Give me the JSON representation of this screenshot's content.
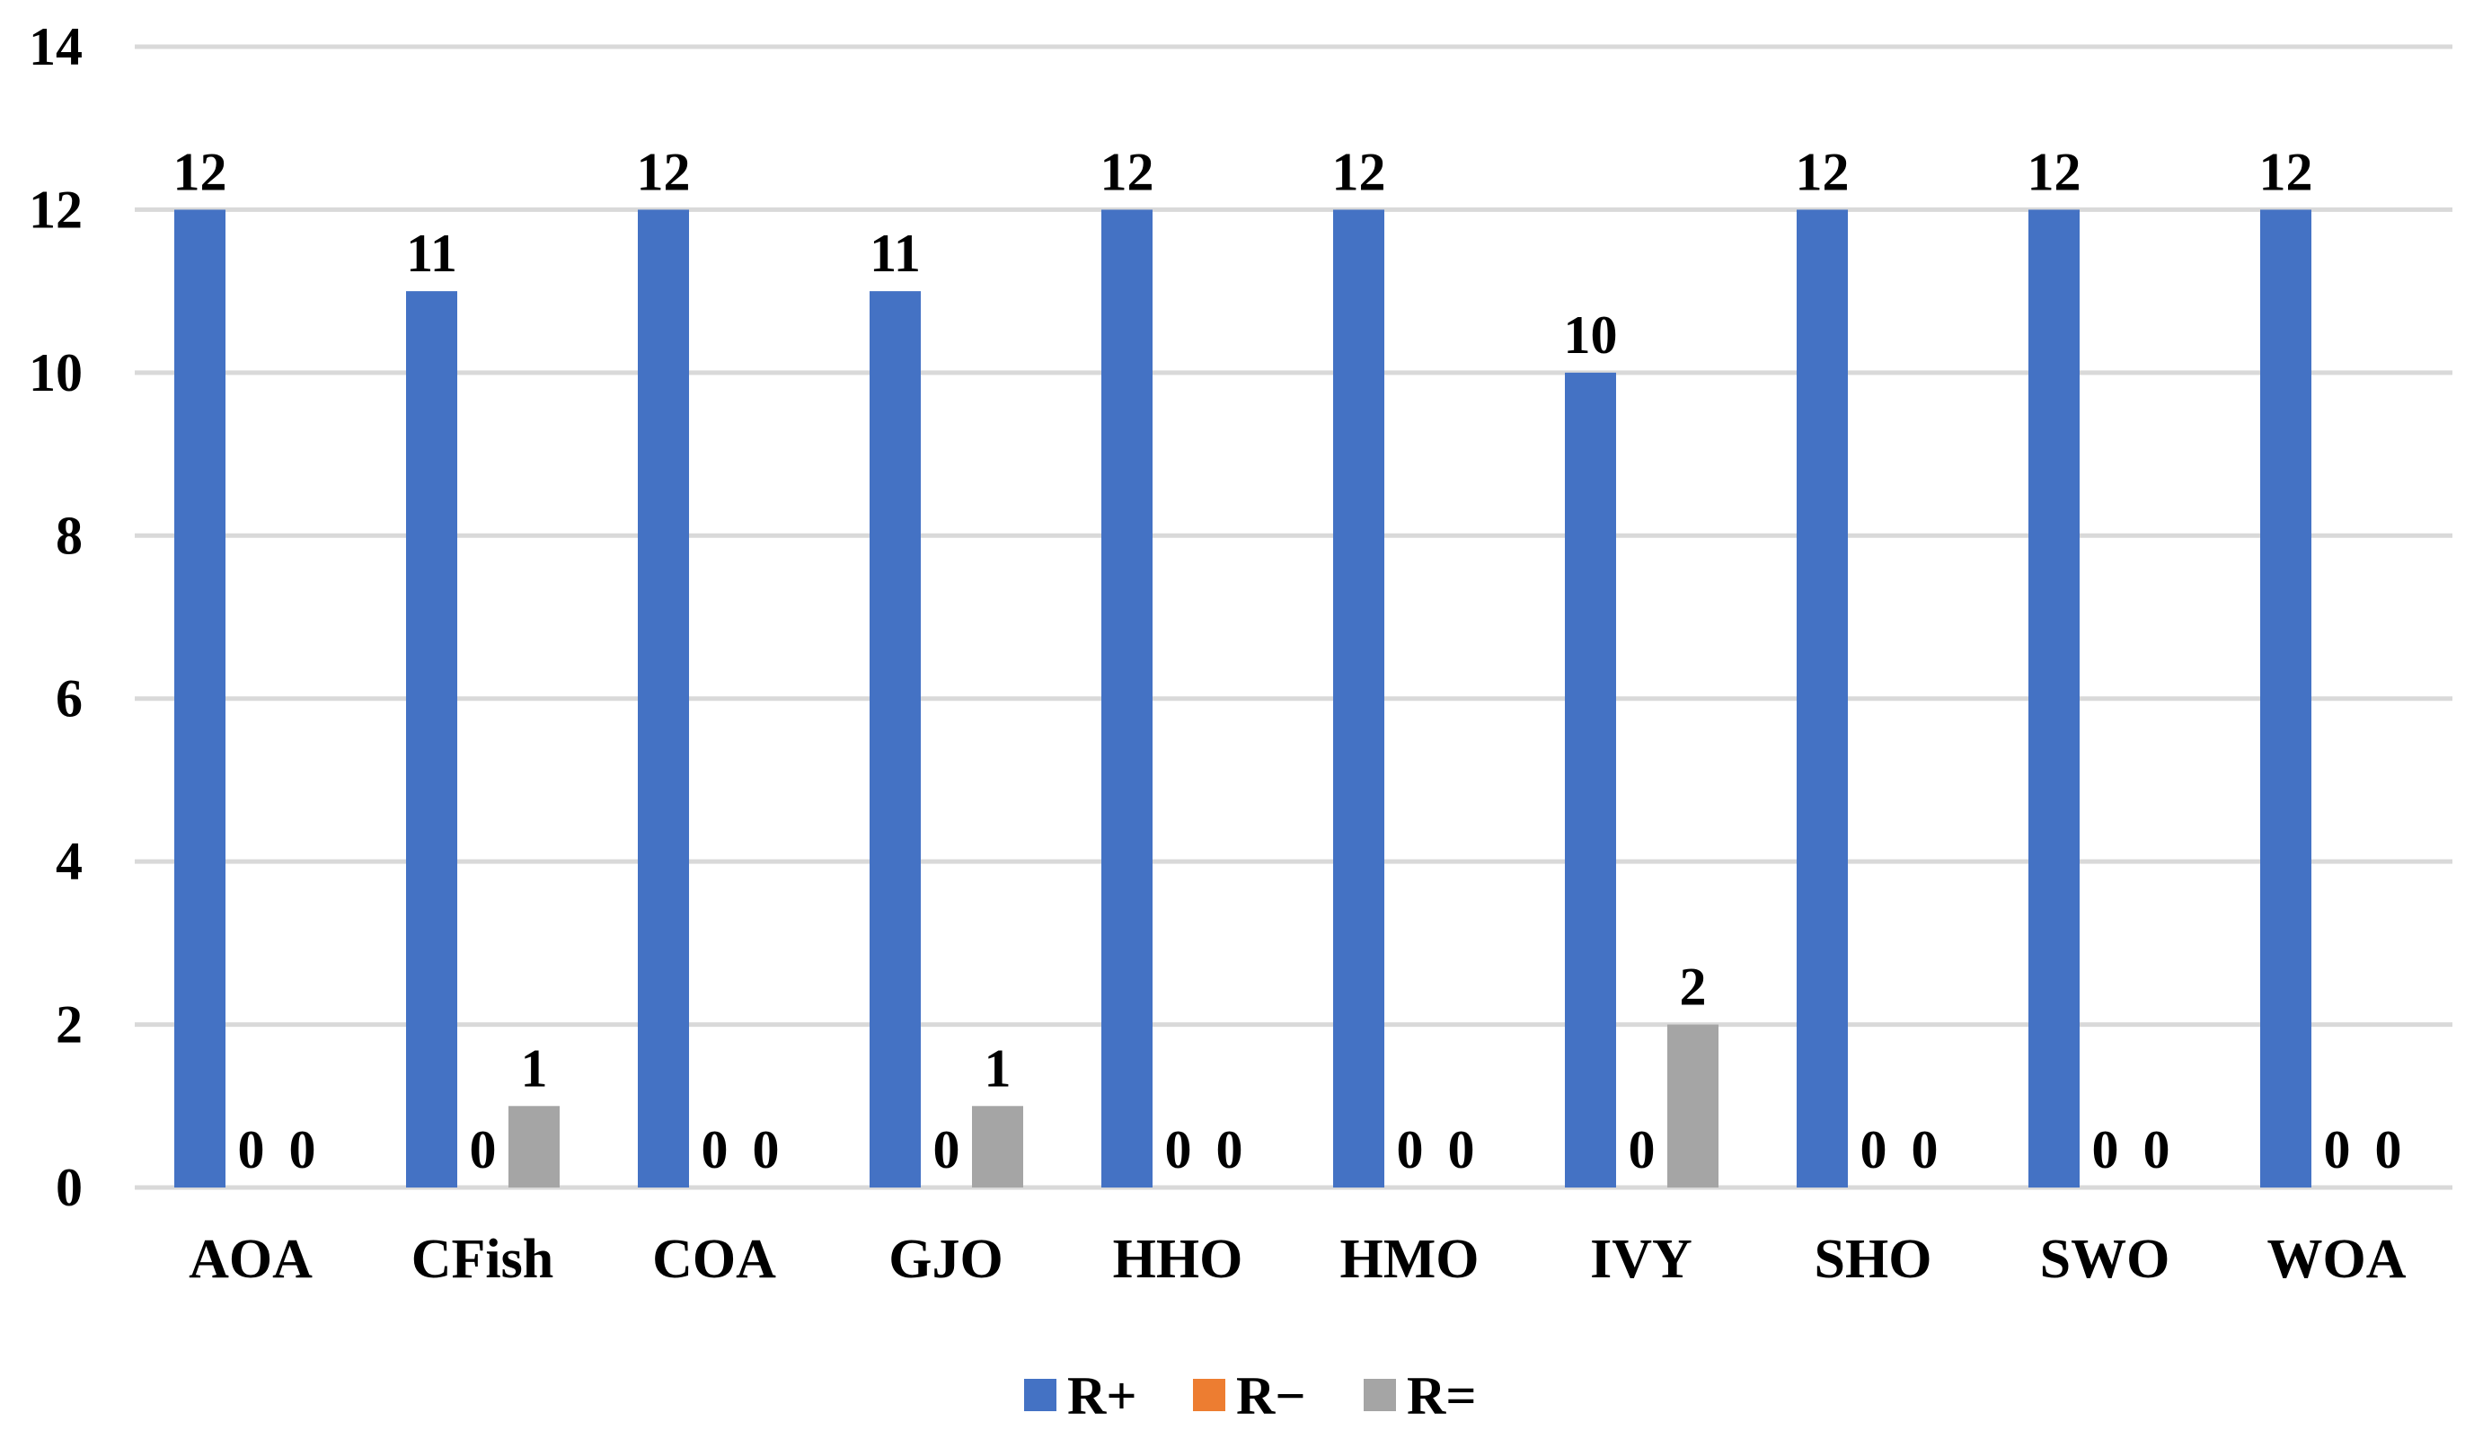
{
  "chart_data": {
    "type": "bar",
    "categories": [
      "AOA",
      "CFish",
      "COA",
      "GJO",
      "HHO",
      "HMO",
      "IVY",
      "SHO",
      "SWO",
      "WOA"
    ],
    "series": [
      {
        "name": "R+",
        "color": "#4472c4",
        "values": [
          12,
          11,
          12,
          11,
          12,
          12,
          10,
          12,
          12,
          12
        ]
      },
      {
        "name": "R−",
        "color": "#ed7d31",
        "values": [
          0,
          0,
          0,
          0,
          0,
          0,
          0,
          0,
          0,
          0
        ]
      },
      {
        "name": "R=",
        "color": "#a5a5a5",
        "values": [
          0,
          1,
          0,
          1,
          0,
          0,
          2,
          0,
          0,
          0
        ]
      }
    ],
    "ylim": [
      0,
      14
    ],
    "yticks": [
      0,
      2,
      4,
      6,
      8,
      10,
      12,
      14
    ],
    "grid": true,
    "data_labels": true,
    "legend_position": "bottom"
  }
}
